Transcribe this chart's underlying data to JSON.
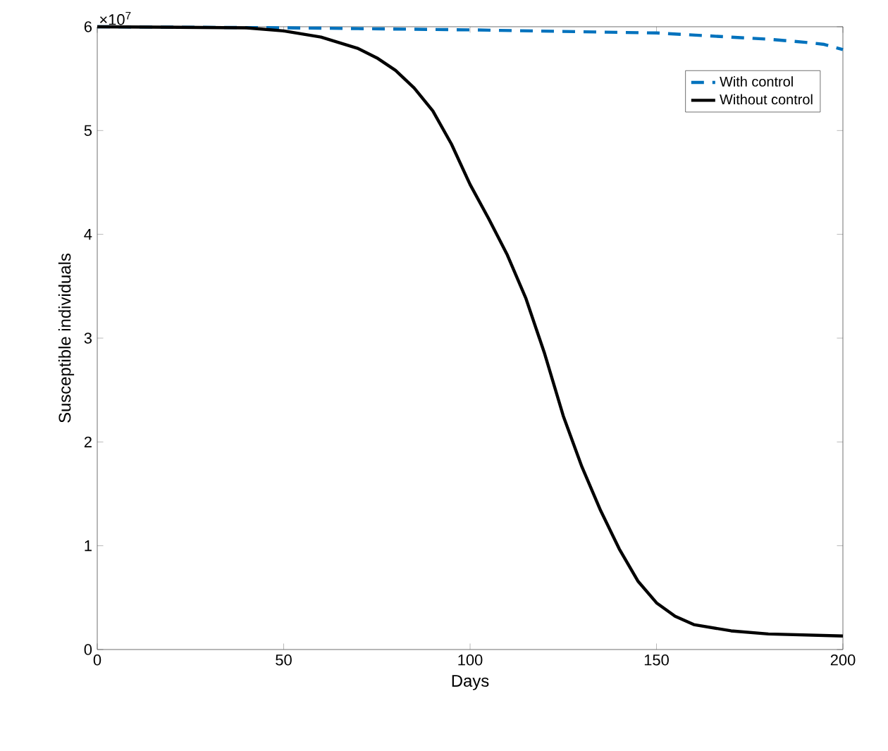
{
  "chart_data": {
    "type": "line",
    "xlabel": "Days",
    "ylabel": "Susceptible individuals",
    "annotations": [
      "×10$^{7}$"
    ],
    "xlim": [
      0,
      200
    ],
    "xticks": [
      0,
      50,
      100,
      150,
      200
    ],
    "ylim": [
      0,
      6
    ],
    "yticks": [
      0,
      1,
      2,
      3,
      4,
      5,
      6
    ],
    "legend": "top right",
    "grid": false,
    "marker": "none",
    "series": [
      {
        "name": "With control",
        "color": "#0072bd",
        "line_style": "dashed",
        "x": [
          0,
          50,
          100,
          150,
          170,
          180,
          190,
          195,
          200
        ],
        "values": [
          6.0,
          5.99,
          5.97,
          5.94,
          5.9,
          5.88,
          5.85,
          5.83,
          5.78
        ]
      },
      {
        "name": "Without control",
        "color": "#000000",
        "line_style": "solid",
        "x": [
          0,
          40,
          50,
          60,
          70,
          75,
          80,
          85,
          90,
          95,
          100,
          105,
          110,
          115,
          120,
          125,
          130,
          135,
          140,
          145,
          150,
          155,
          160,
          170,
          180,
          190,
          200
        ],
        "values": [
          6.0,
          5.99,
          5.96,
          5.9,
          5.79,
          5.7,
          5.58,
          5.41,
          5.19,
          4.87,
          4.48,
          4.15,
          3.8,
          3.38,
          2.85,
          2.25,
          1.76,
          1.34,
          0.97,
          0.66,
          0.45,
          0.32,
          0.24,
          0.18,
          0.15,
          0.14,
          0.13
        ]
      }
    ]
  }
}
